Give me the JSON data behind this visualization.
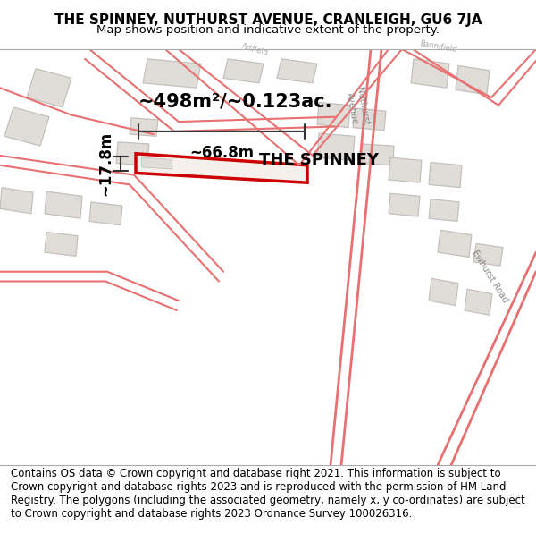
{
  "title_line1": "THE SPINNEY, NUTHURST AVENUE, CRANLEIGH, GU6 7JA",
  "title_line2": "Map shows position and indicative extent of the property.",
  "footer_text": "Contains OS data © Crown copyright and database right 2021. This information is subject to Crown copyright and database rights 2023 and is reproduced with the permission of HM Land Registry. The polygons (including the associated geometry, namely x, y co-ordinates) are subject to Crown copyright and database rights 2023 Ordnance Survey 100026316.",
  "bg_color": "#f5f0eb",
  "map_bg": "#f5f0eb",
  "title_bg": "#ffffff",
  "footer_bg": "#ffffff",
  "property_label": "THE SPINNEY",
  "area_label": "~498m²/~0.123ac.",
  "width_label": "~66.8m",
  "height_label": "~17.8m",
  "property_outline_color": "#cc0000",
  "road_color": "#e87070",
  "building_fill": "#e0ddd8",
  "building_stroke": "#c0bdb8",
  "dim_line_color": "#333333",
  "title_fontsize": 11,
  "subtitle_fontsize": 9.5,
  "footer_fontsize": 8.5,
  "label_fontsize": 13,
  "area_fontsize": 15
}
